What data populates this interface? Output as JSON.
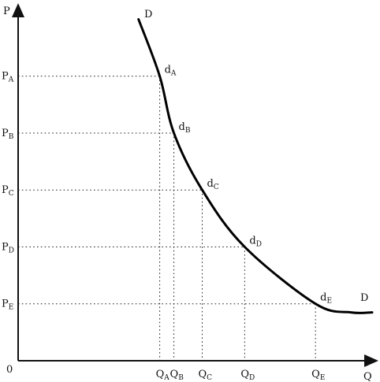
{
  "chart_data": {
    "type": "line",
    "title": "",
    "axes": {
      "y_label": "P",
      "x_label": "Q",
      "origin_label": "0"
    },
    "curve_label": "D",
    "grid": false,
    "guide_lines": "dotted",
    "y_ticks": [
      {
        "label": "P",
        "sub": "A",
        "value": 5
      },
      {
        "label": "P",
        "sub": "B",
        "value": 4
      },
      {
        "label": "P",
        "sub": "C",
        "value": 3
      },
      {
        "label": "P",
        "sub": "D",
        "value": 2
      },
      {
        "label": "P",
        "sub": "E",
        "value": 1
      }
    ],
    "x_ticks": [
      {
        "label": "Q",
        "sub": "A",
        "value": 4.0
      },
      {
        "label": "Q",
        "sub": "B",
        "value": 4.4
      },
      {
        "label": "Q",
        "sub": "C",
        "value": 5.2
      },
      {
        "label": "Q",
        "sub": "D",
        "value": 6.4
      },
      {
        "label": "Q",
        "sub": "E",
        "value": 8.4
      }
    ],
    "points": [
      {
        "label": "d",
        "sub": "A",
        "x": 4.0,
        "y": 5
      },
      {
        "label": "d",
        "sub": "B",
        "x": 4.4,
        "y": 4
      },
      {
        "label": "d",
        "sub": "C",
        "x": 5.2,
        "y": 3
      },
      {
        "label": "d",
        "sub": "D",
        "x": 6.4,
        "y": 2
      },
      {
        "label": "d",
        "sub": "E",
        "x": 8.4,
        "y": 1
      }
    ],
    "curve": [
      {
        "x": 3.4,
        "y": 6.0
      },
      {
        "x": 4.0,
        "y": 5.0
      },
      {
        "x": 4.4,
        "y": 4.0
      },
      {
        "x": 5.2,
        "y": 3.0
      },
      {
        "x": 6.4,
        "y": 2.0
      },
      {
        "x": 8.4,
        "y": 1.0
      },
      {
        "x": 9.4,
        "y": 0.85
      },
      {
        "x": 10.0,
        "y": 0.85
      }
    ],
    "xlim": [
      0,
      10
    ],
    "ylim": [
      0,
      6.2
    ]
  }
}
